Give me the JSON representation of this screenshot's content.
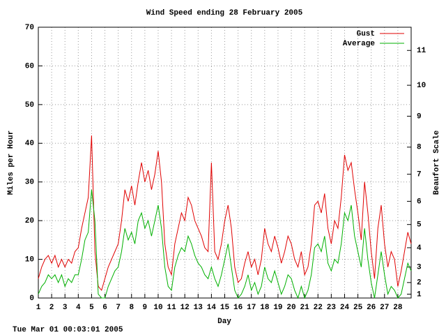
{
  "chart_data": {
    "type": "line",
    "title": "Wind Speed ending 28 February 2005",
    "x_label": "Day",
    "y_label": "Miles per Hour",
    "y2_label": "Beaufort Scale",
    "annotation": "Tue Mar 01 00:03:01 2005",
    "x": [
      1,
      1.25,
      1.5,
      1.75,
      2,
      2.25,
      2.5,
      2.75,
      3,
      3.25,
      3.5,
      3.75,
      4,
      4.25,
      4.5,
      4.75,
      5,
      5.25,
      5.5,
      5.75,
      6,
      6.25,
      6.5,
      6.75,
      7,
      7.25,
      7.5,
      7.75,
      8,
      8.25,
      8.5,
      8.75,
      9,
      9.25,
      9.5,
      9.75,
      10,
      10.25,
      10.5,
      10.75,
      11,
      11.25,
      11.5,
      11.75,
      12,
      12.25,
      12.5,
      12.75,
      13,
      13.25,
      13.5,
      13.75,
      14,
      14.25,
      14.5,
      14.75,
      15,
      15.25,
      15.5,
      15.75,
      16,
      16.25,
      16.5,
      16.75,
      17,
      17.25,
      17.5,
      17.75,
      18,
      18.25,
      18.5,
      18.75,
      19,
      19.25,
      19.5,
      19.75,
      20,
      20.25,
      20.5,
      20.75,
      21,
      21.25,
      21.5,
      21.75,
      22,
      22.25,
      22.5,
      22.75,
      23,
      23.25,
      23.5,
      23.75,
      24,
      24.25,
      24.5,
      24.75,
      25,
      25.25,
      25.5,
      25.75,
      26,
      26.25,
      26.5,
      26.75,
      27,
      27.25,
      27.5,
      27.75,
      28,
      28.25,
      28.5,
      28.75,
      29
    ],
    "series": [
      {
        "name": "Gust",
        "color": "#e00000",
        "values": [
          5,
          8,
          10,
          11,
          9,
          11,
          8,
          10,
          8,
          10,
          9,
          12,
          13,
          18,
          22,
          26,
          42,
          12,
          3,
          2,
          5,
          8,
          10,
          12,
          14,
          20,
          28,
          25,
          29,
          24,
          30,
          35,
          30,
          33,
          28,
          32,
          38,
          30,
          14,
          8,
          6,
          14,
          18,
          22,
          20,
          26,
          24,
          20,
          18,
          16,
          13,
          12,
          35,
          12,
          10,
          14,
          20,
          24,
          18,
          8,
          4,
          5,
          9,
          12,
          8,
          10,
          6,
          10,
          18,
          14,
          12,
          16,
          13,
          9,
          12,
          16,
          14,
          10,
          8,
          12,
          6,
          8,
          14,
          24,
          25,
          22,
          27,
          18,
          14,
          20,
          18,
          26,
          37,
          33,
          35,
          28,
          22,
          15,
          30,
          22,
          12,
          5,
          18,
          24,
          14,
          8,
          12,
          10,
          3,
          7,
          12,
          17,
          14
        ]
      },
      {
        "name": "Average",
        "color": "#00b000",
        "values": [
          1,
          3,
          4,
          6,
          5,
          6,
          4,
          6,
          3,
          5,
          4,
          6,
          6,
          10,
          15,
          17,
          28,
          20,
          1,
          0,
          0,
          3,
          5,
          7,
          8,
          12,
          18,
          15,
          17,
          14,
          20,
          22,
          18,
          20,
          16,
          20,
          24,
          18,
          8,
          3,
          2,
          8,
          11,
          13,
          12,
          16,
          14,
          11,
          9,
          8,
          6,
          5,
          8,
          5,
          3,
          6,
          10,
          14,
          8,
          2,
          0,
          1,
          3,
          6,
          2,
          4,
          1,
          3,
          8,
          5,
          4,
          7,
          4,
          1,
          3,
          6,
          5,
          2,
          0,
          3,
          0,
          2,
          6,
          13,
          14,
          12,
          16,
          9,
          7,
          10,
          9,
          14,
          22,
          20,
          24,
          16,
          12,
          8,
          18,
          10,
          4,
          0,
          6,
          12,
          6,
          1,
          3,
          2,
          0,
          1,
          5,
          9,
          7
        ]
      }
    ],
    "xlim": [
      1,
      29
    ],
    "xticks": [
      1,
      2,
      3,
      4,
      5,
      6,
      7,
      8,
      9,
      10,
      11,
      12,
      13,
      14,
      15,
      16,
      17,
      18,
      19,
      20,
      21,
      22,
      23,
      24,
      25,
      26,
      27,
      28
    ],
    "ylim": [
      0,
      70
    ],
    "yticks": [
      0,
      10,
      20,
      30,
      40,
      50,
      60,
      70
    ],
    "y2lim": [
      0,
      70
    ],
    "y2ticks": [
      1,
      {
        "value": 4,
        "label": "2"
      },
      {
        "value": 8,
        "label": "3"
      },
      {
        "value": 13,
        "label": "4"
      },
      {
        "value": 19,
        "label": "5"
      },
      {
        "value": 25,
        "label": "6"
      },
      {
        "value": 32,
        "label": "7"
      },
      {
        "value": 39,
        "label": "8"
      },
      {
        "value": 47,
        "label": "9"
      },
      {
        "value": 55,
        "label": "10"
      },
      {
        "value": 64,
        "label": "11"
      }
    ],
    "grid": true,
    "legend": "top-right"
  }
}
